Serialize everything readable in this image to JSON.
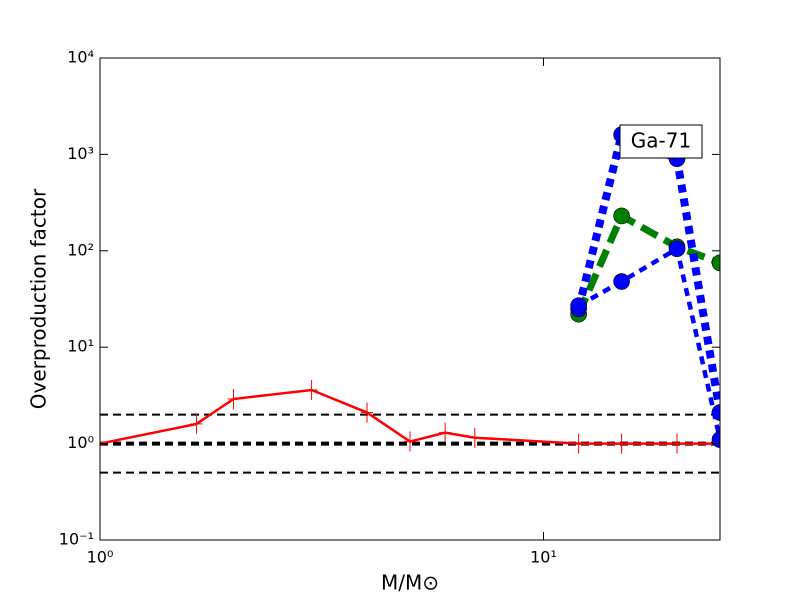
{
  "chart_data": {
    "type": "line",
    "xlabel": "M/M⊙",
    "ylabel": "Overproduction factor",
    "xscale": "log",
    "yscale": "log",
    "xlim": [
      1,
      25
    ],
    "ylim": [
      0.1,
      10000
    ],
    "xticks": [
      {
        "value": 1,
        "label": "10⁰"
      },
      {
        "value": 10,
        "label": "10¹"
      }
    ],
    "yticks": [
      {
        "value": 0.1,
        "label": "10⁻¹"
      },
      {
        "value": 1,
        "label": "10⁰"
      },
      {
        "value": 10,
        "label": "10¹"
      },
      {
        "value": 100,
        "label": "10²"
      },
      {
        "value": 1000,
        "label": "10³"
      },
      {
        "value": 10000,
        "label": "10⁴"
      }
    ],
    "reference_lines": [
      {
        "value": 0.5,
        "color": "#000000",
        "width": 2
      },
      {
        "value": 1,
        "color": "#000000",
        "width": 4
      },
      {
        "value": 2,
        "color": "#000000",
        "width": 2
      }
    ],
    "annotation": "Ga-71",
    "series": [
      {
        "color": "#ff0000",
        "style": "solid",
        "width": 2.5,
        "marker": "plus",
        "x": [
          1,
          1.65,
          2,
          3,
          4,
          5,
          6,
          7,
          12,
          15,
          20,
          25
        ],
        "values": [
          1,
          1.6,
          2.9,
          3.6,
          2.1,
          1.05,
          1.3,
          1.15,
          1.0,
          1.0,
          1.0,
          1.0
        ]
      },
      {
        "color": "#008000",
        "style": "dashed",
        "width": 7,
        "marker": "circle",
        "x": [
          12,
          15,
          20,
          25
        ],
        "values": [
          22,
          230,
          110,
          75
        ]
      },
      {
        "color": "#0000ff",
        "style": "dotted",
        "width": 8,
        "marker": "circle",
        "x": [
          12,
          15,
          20,
          25
        ],
        "values": [
          25,
          1600,
          900,
          2.1
        ]
      },
      {
        "color": "#0000ff",
        "style": "dotted",
        "width": 4.5,
        "marker": "circle",
        "x": [
          12,
          15,
          20,
          25
        ],
        "values": [
          27,
          48,
          105,
          1.1
        ]
      }
    ]
  }
}
